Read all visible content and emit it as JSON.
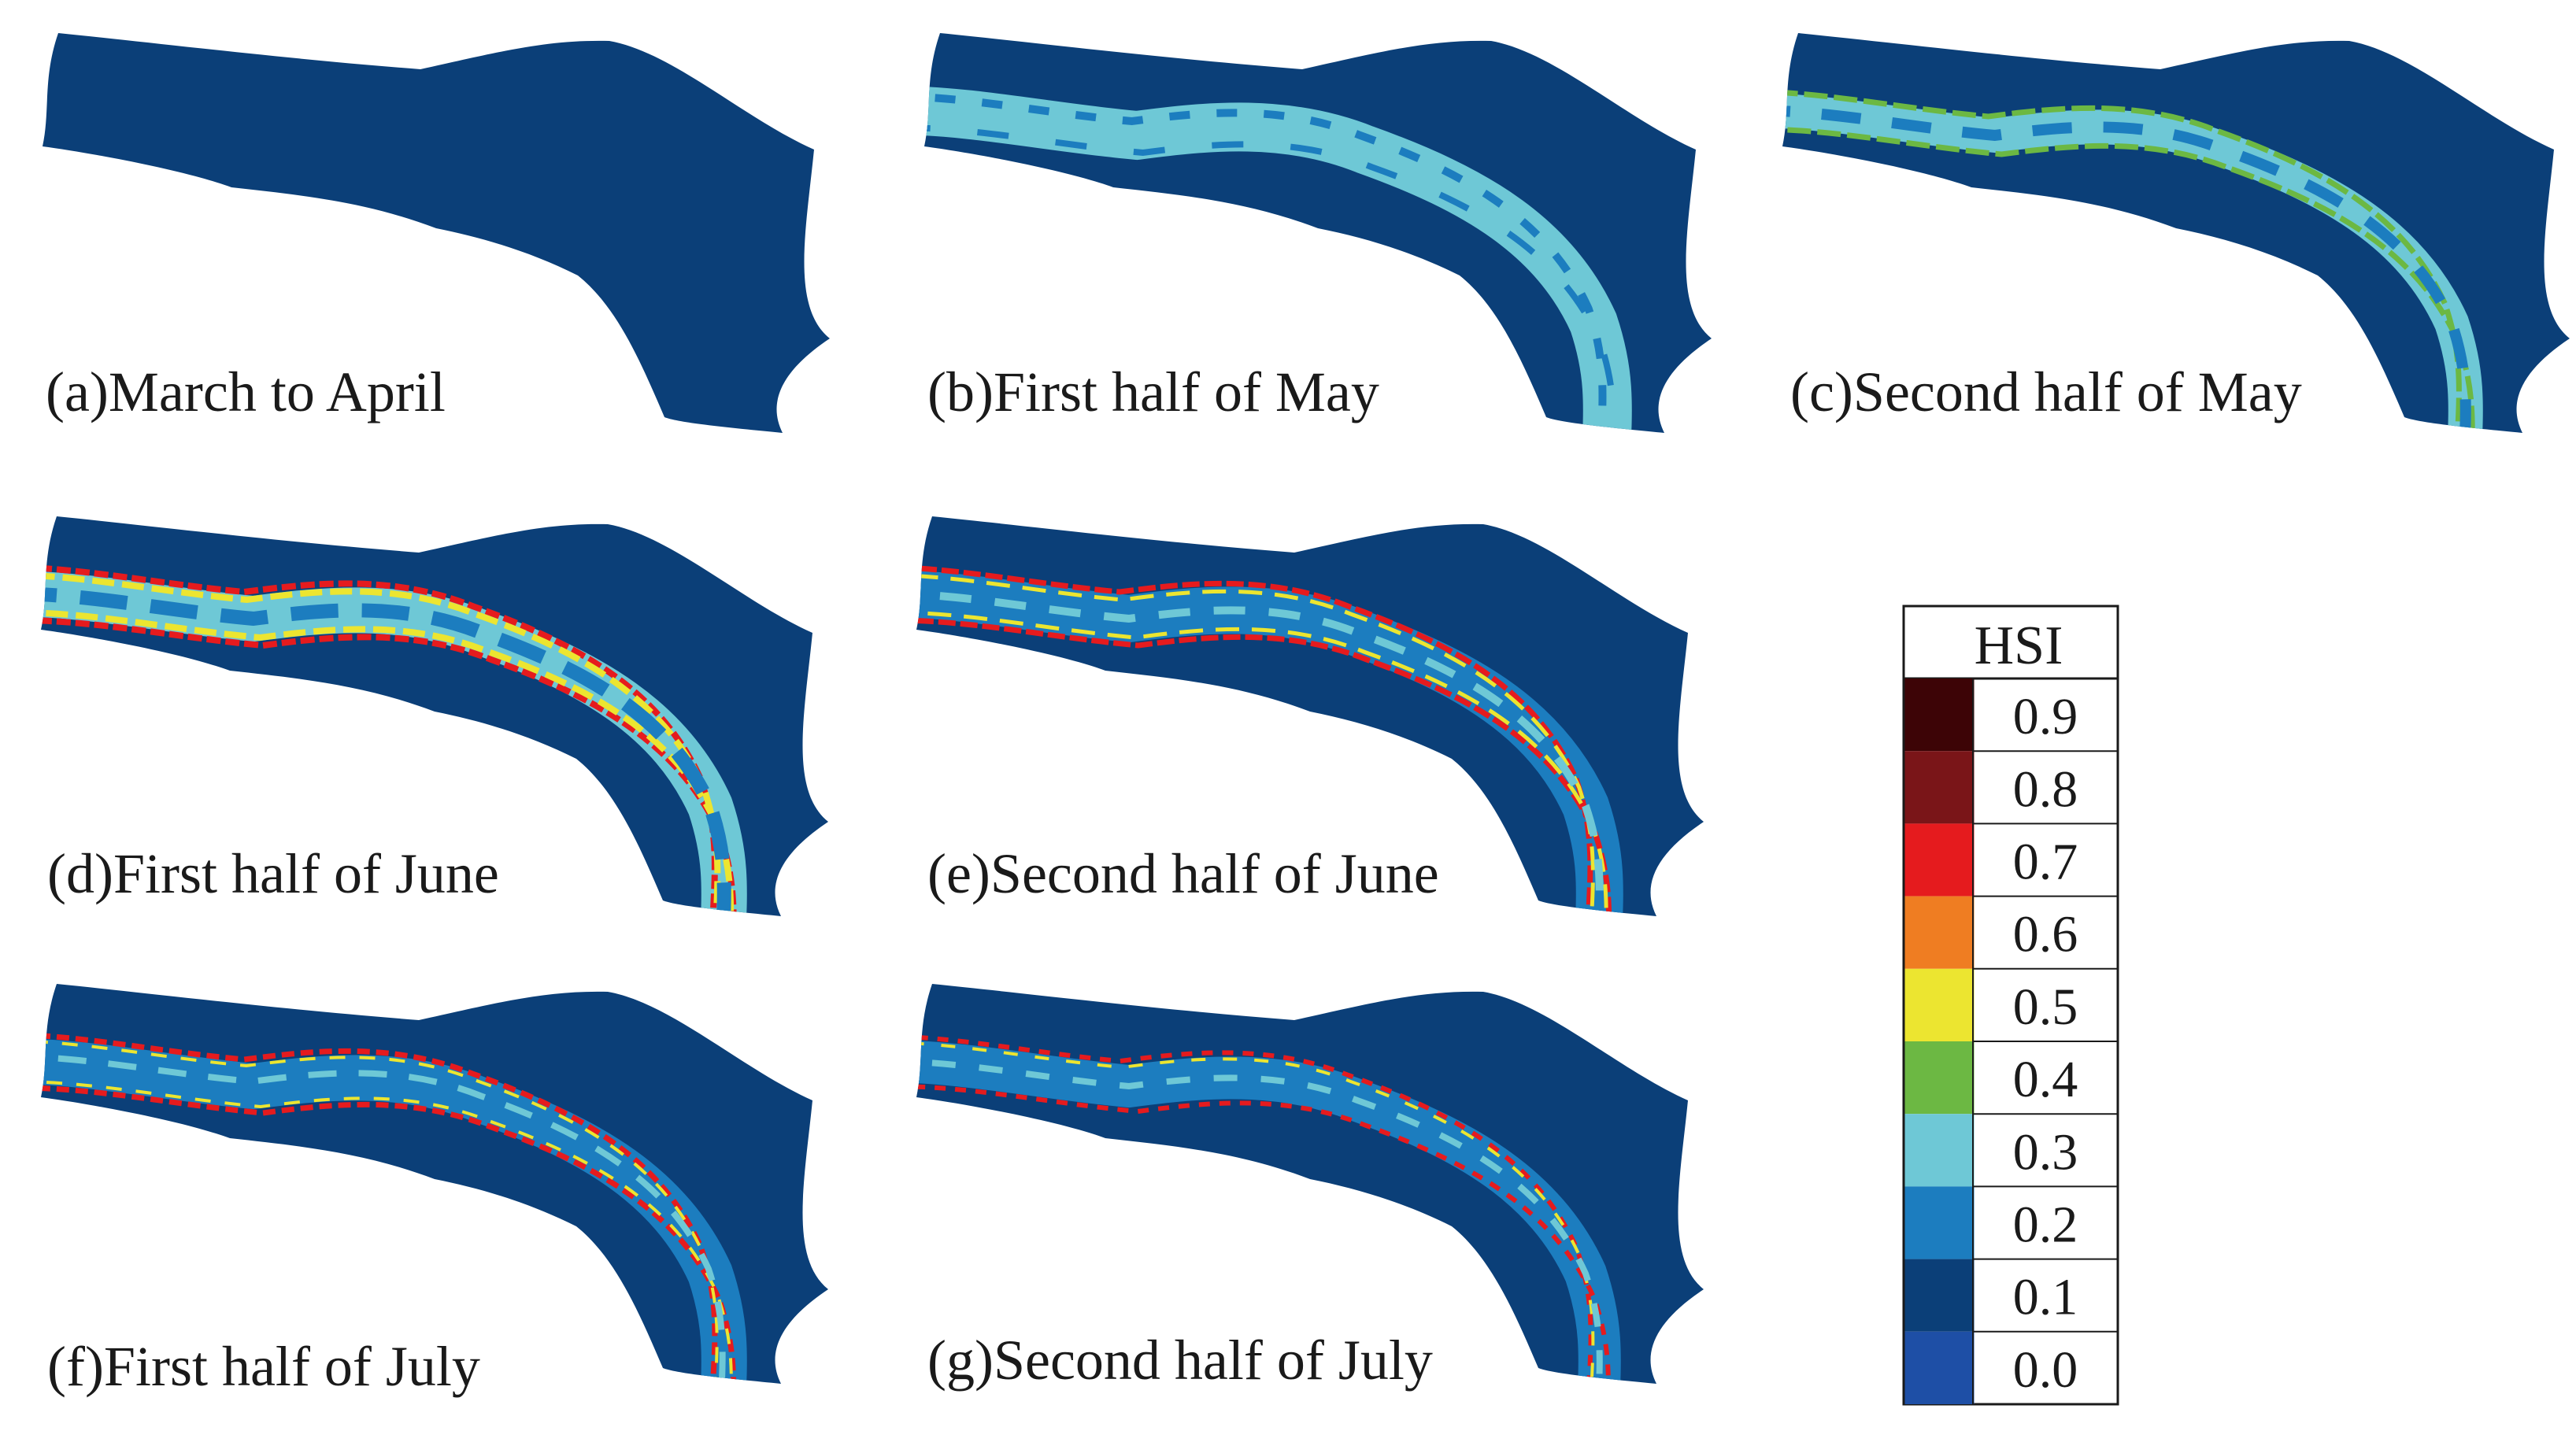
{
  "panels": [
    {
      "id": "a",
      "label": "(a)March to April",
      "pattern": "none"
    },
    {
      "id": "b",
      "label": "(b)First half of May",
      "pattern": "may1"
    },
    {
      "id": "c",
      "label": "(c)Second half of May",
      "pattern": "may2"
    },
    {
      "id": "d",
      "label": "(d)First half of June",
      "pattern": "june1"
    },
    {
      "id": "e",
      "label": "(e)Second half of June",
      "pattern": "june2"
    },
    {
      "id": "f",
      "label": "(f)First half of July",
      "pattern": "july1"
    },
    {
      "id": "g",
      "label": "(g)Second half of July",
      "pattern": "july2"
    }
  ],
  "legend": {
    "title": "HSI",
    "entries": [
      {
        "label": "0.9",
        "color": "#3d0406"
      },
      {
        "label": "0.8",
        "color": "#7a1518"
      },
      {
        "label": "0.7",
        "color": "#e51b1e"
      },
      {
        "label": "0.6",
        "color": "#ef7d22"
      },
      {
        "label": "0.5",
        "color": "#ece530"
      },
      {
        "label": "0.4",
        "color": "#6cb843"
      },
      {
        "label": "0.3",
        "color": "#6ec8d6"
      },
      {
        "label": "0.2",
        "color": "#1c7dbf"
      },
      {
        "label": "0.1",
        "color": "#0b3f78"
      },
      {
        "label": "0.0",
        "color": "#1e4fa6"
      }
    ]
  }
}
